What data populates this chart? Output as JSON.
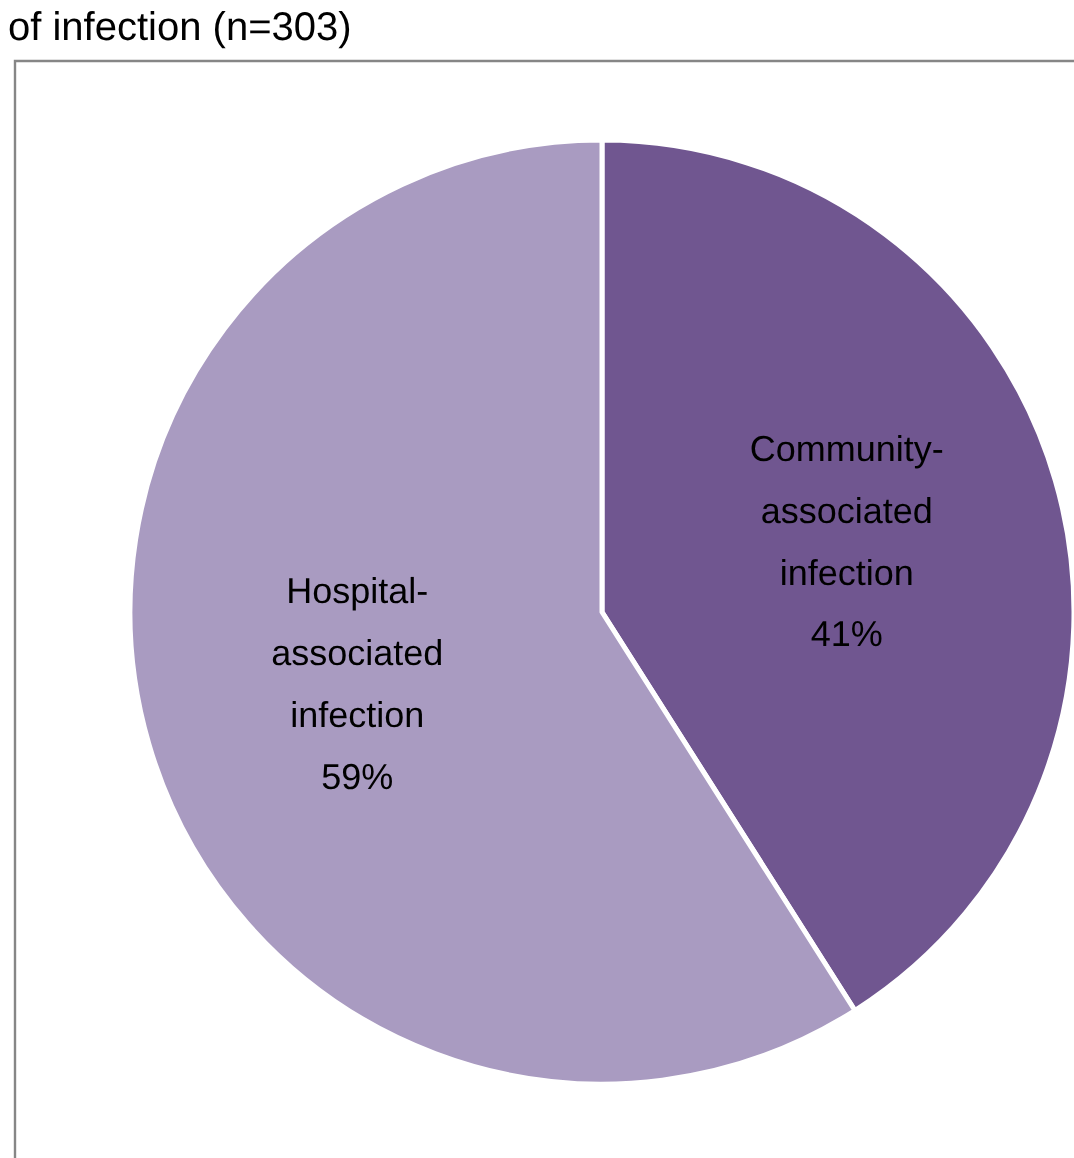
{
  "chart_data": {
    "type": "pie",
    "title": "of infection (n=303)",
    "categories": [
      "Community-associated infection",
      "Hospital-associated infection"
    ],
    "values": [
      41,
      59
    ],
    "colors": [
      "#705690",
      "#a99bc1"
    ],
    "value_labels": [
      "41%",
      "59%"
    ]
  }
}
